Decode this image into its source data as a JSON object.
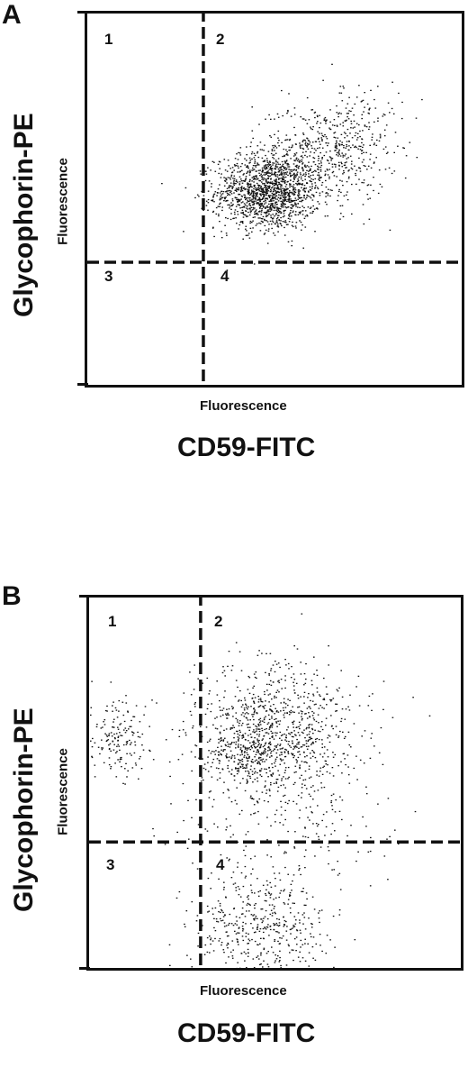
{
  "chart_data": [
    {
      "type": "scatter",
      "panel_label": "A",
      "xlabel": "Fluorescence",
      "x_marker_label": "CD59-FITC",
      "ylabel": "Fluorescence",
      "y_marker_label": "Glycophorin-PE",
      "quadrant_labels": [
        "1",
        "2",
        "3",
        "4"
      ],
      "quadrant_gates": {
        "x": 0.31,
        "y": 0.33
      },
      "xlim": [
        0,
        1
      ],
      "ylim": [
        0,
        1
      ],
      "grid": false,
      "series": [
        {
          "clusters": [
            {
              "cx": 0.48,
              "cy": 0.52,
              "sx": 0.07,
              "sy": 0.05,
              "n": 1400
            },
            {
              "cx": 0.62,
              "cy": 0.62,
              "sx": 0.09,
              "sy": 0.07,
              "n": 500
            },
            {
              "cx": 0.72,
              "cy": 0.7,
              "sx": 0.06,
              "sy": 0.06,
              "n": 120
            }
          ]
        }
      ]
    },
    {
      "type": "scatter",
      "panel_label": "B",
      "xlabel": "Fluorescence",
      "x_marker_label": "CD59-FITC",
      "ylabel": "Fluorescence",
      "y_marker_label": "Glycophorin-PE",
      "quadrant_labels": [
        "1",
        "2",
        "3",
        "4"
      ],
      "quadrant_gates": {
        "x": 0.3,
        "y": 0.34
      },
      "xlim": [
        0,
        1
      ],
      "ylim": [
        0,
        1
      ],
      "grid": false,
      "series": [
        {
          "clusters": [
            {
              "cx": 0.07,
              "cy": 0.62,
              "sx": 0.05,
              "sy": 0.05,
              "n": 170
            },
            {
              "cx": 0.5,
              "cy": 0.64,
              "sx": 0.11,
              "sy": 0.09,
              "n": 900
            },
            {
              "cx": 0.42,
              "cy": 0.58,
              "sx": 0.05,
              "sy": 0.04,
              "n": 200
            },
            {
              "cx": 0.45,
              "cy": 0.12,
              "sx": 0.09,
              "sy": 0.08,
              "n": 450
            },
            {
              "cx": 0.55,
              "cy": 0.4,
              "sx": 0.15,
              "sy": 0.12,
              "n": 200
            }
          ]
        }
      ]
    }
  ]
}
